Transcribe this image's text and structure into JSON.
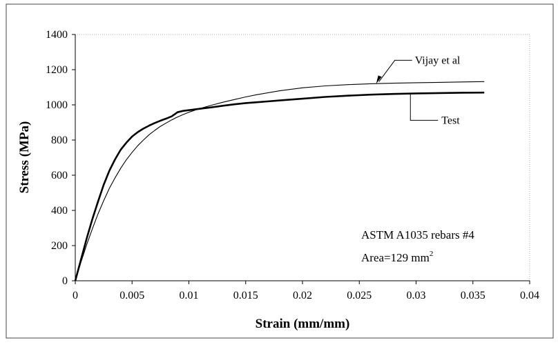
{
  "chart_data": {
    "type": "line",
    "title": "",
    "xlabel": "Strain (mm/mm)",
    "ylabel": "Stress (MPa)",
    "xlim": [
      0,
      0.04
    ],
    "ylim": [
      0,
      1400
    ],
    "x_ticks": [
      0,
      0.005,
      0.01,
      0.015,
      0.02,
      0.025,
      0.03,
      0.035,
      0.04
    ],
    "x_tick_labels": [
      "0",
      "0.005",
      "0.01",
      "0.015",
      "0.02",
      "0.025",
      "0.03",
      "0.035",
      "0.04"
    ],
    "y_ticks": [
      0,
      200,
      400,
      600,
      800,
      1000,
      1200,
      1400
    ],
    "y_tick_labels": [
      "0",
      "200",
      "400",
      "600",
      "800",
      "1000",
      "1200",
      "1400"
    ],
    "grid": false,
    "legend": "none",
    "series": [
      {
        "name": "Test",
        "color": "#000000",
        "style": "thick",
        "x": [
          0,
          0.0005,
          0.001,
          0.0015,
          0.002,
          0.0025,
          0.003,
          0.0035,
          0.004,
          0.0045,
          0.005,
          0.0055,
          0.006,
          0.0065,
          0.007,
          0.0075,
          0.008,
          0.0085,
          0.009,
          0.0095,
          0.01,
          0.011,
          0.012,
          0.013,
          0.014,
          0.015,
          0.016,
          0.018,
          0.02,
          0.022,
          0.024,
          0.026,
          0.028,
          0.03,
          0.032,
          0.034,
          0.036
        ],
        "y": [
          0,
          120,
          240,
          350,
          450,
          545,
          625,
          690,
          745,
          785,
          820,
          845,
          865,
          882,
          897,
          910,
          922,
          935,
          958,
          966,
          970,
          978,
          986,
          995,
          1003,
          1010,
          1015,
          1025,
          1035,
          1045,
          1052,
          1058,
          1062,
          1065,
          1067,
          1069,
          1070
        ]
      },
      {
        "name": "Vijay et al",
        "color": "#000000",
        "style": "thin",
        "x": [
          0,
          0.0005,
          0.001,
          0.0015,
          0.002,
          0.0025,
          0.003,
          0.0035,
          0.004,
          0.0045,
          0.005,
          0.0055,
          0.006,
          0.0065,
          0.007,
          0.0075,
          0.008,
          0.0085,
          0.009,
          0.0095,
          0.01,
          0.011,
          0.012,
          0.013,
          0.014,
          0.015,
          0.016,
          0.018,
          0.02,
          0.022,
          0.024,
          0.026,
          0.028,
          0.03,
          0.032,
          0.034,
          0.036
        ],
        "y": [
          0,
          105,
          205,
          295,
          380,
          455,
          525,
          585,
          640,
          688,
          730,
          768,
          800,
          830,
          855,
          878,
          897,
          915,
          931,
          945,
          958,
          980,
          998,
          1015,
          1030,
          1045,
          1058,
          1080,
          1097,
          1108,
          1115,
          1120,
          1123,
          1126,
          1128,
          1130,
          1132
        ]
      }
    ],
    "annotations": [
      {
        "text": "Vijay et al",
        "points_to": "Vijay et al",
        "at_x": 0.026,
        "at_y": 1120
      },
      {
        "text": "Test",
        "points_to": "Test",
        "at_x": 0.0295,
        "at_y": 1065
      }
    ],
    "notes": [
      "ASTM A1035 rebars #4",
      "Area=129 mm",
      "2"
    ]
  }
}
